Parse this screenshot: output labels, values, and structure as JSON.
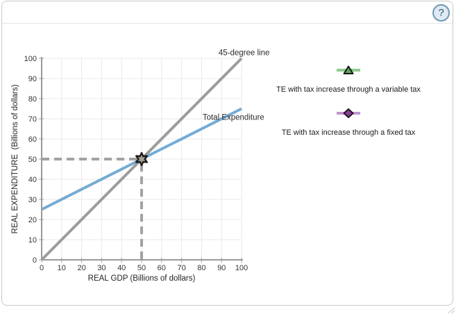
{
  "header": {
    "help_icon": {
      "glyph": "?"
    }
  },
  "legend": {
    "items": [
      {
        "id": "variable-tax",
        "marker": "triangle",
        "label": "TE with tax increase through a variable tax",
        "line_color": "#8fcb8f",
        "fill_color": "#57a757",
        "stroke_color": "#1a1a1a"
      },
      {
        "id": "fixed-tax",
        "marker": "diamond",
        "label": "TE with tax increase through a fixed tax",
        "line_color": "#c493cf",
        "fill_color": "#8d3a9c",
        "stroke_color": "#1a1a1a"
      }
    ]
  },
  "chart_data": {
    "type": "line",
    "title": "",
    "xlabel": "REAL GDP (Billions of dollars)",
    "ylabel": "REAL EXPENDITURE  (Billions of dollars)",
    "xlim": [
      0,
      100
    ],
    "ylim": [
      0,
      100
    ],
    "xticks": [
      0,
      10,
      20,
      30,
      40,
      50,
      60,
      70,
      80,
      90,
      100
    ],
    "yticks": [
      0,
      10,
      20,
      30,
      40,
      50,
      60,
      70,
      80,
      90,
      100
    ],
    "grid": true,
    "series": [
      {
        "name": "45-degree line",
        "points": [
          [
            0,
            0
          ],
          [
            100,
            100
          ]
        ],
        "color": "#9c9c9c",
        "width": 4,
        "label": "45-degree line",
        "label_at": [
          88.5,
          101.5
        ]
      },
      {
        "name": "Total Expenditure",
        "points": [
          [
            0,
            25
          ],
          [
            100,
            75
          ]
        ],
        "color": "#75abd4",
        "width": 4,
        "label": "Total Expenditure",
        "label_at": [
          80.5,
          69.5
        ]
      }
    ],
    "equilibrium": {
      "x": 50,
      "y": 50,
      "marker": "star",
      "marker_fill": "#a69e93",
      "marker_stroke": "#1c1c1c",
      "guide_color": "#a2a2a2",
      "guide_style": "dashed"
    },
    "axis_color": "#999999",
    "grid_color": "#e9e9e9",
    "tick_label_color": "#333333",
    "axis_title_color": "#222222",
    "legend_position": "right"
  }
}
